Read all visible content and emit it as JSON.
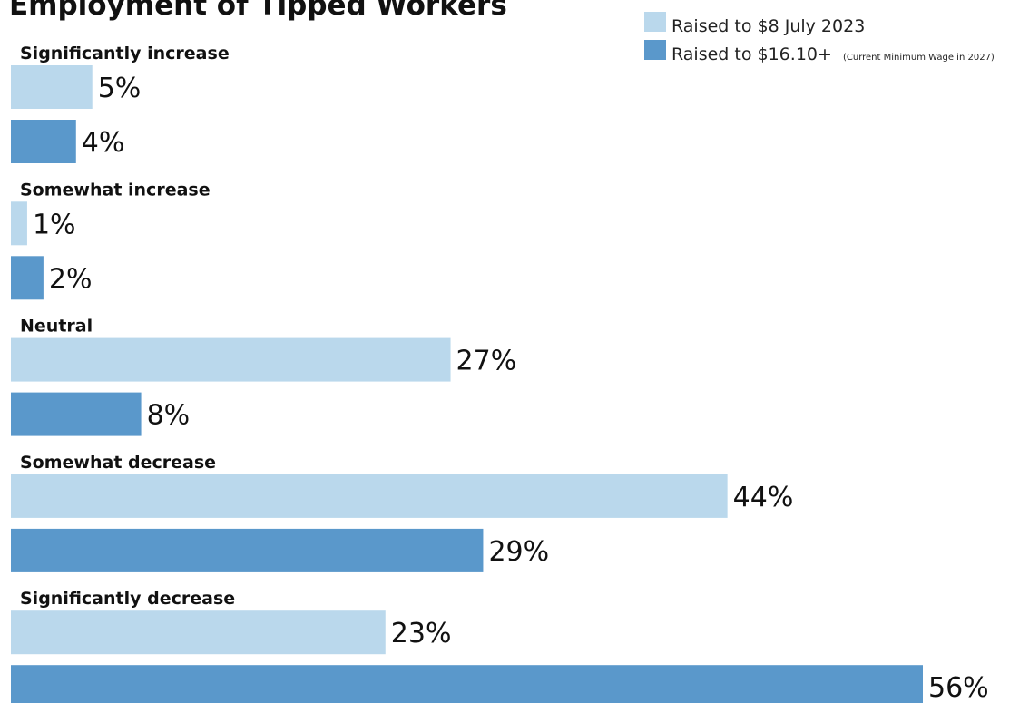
{
  "chart_data": {
    "type": "bar",
    "orientation": "horizontal",
    "title": "Employment of Tipped Workers",
    "categories": [
      "Significantly increase",
      "Somewhat increase",
      "Neutral",
      "Somewhat decrease",
      "Significantly decrease"
    ],
    "series": [
      {
        "name": "Raised to $8 July 2023",
        "note": "",
        "color": "#bad8ec",
        "values": [
          5,
          1,
          27,
          44,
          23
        ]
      },
      {
        "name": "Raised to $16.10+",
        "note": "(Current Minimum Wage in 2027)",
        "color": "#5a98cb",
        "values": [
          4,
          2,
          8,
          29,
          56
        ]
      }
    ],
    "value_suffix": "%",
    "xlim": [
      0,
      56
    ],
    "legend_position": "top-right",
    "grid": false
  }
}
